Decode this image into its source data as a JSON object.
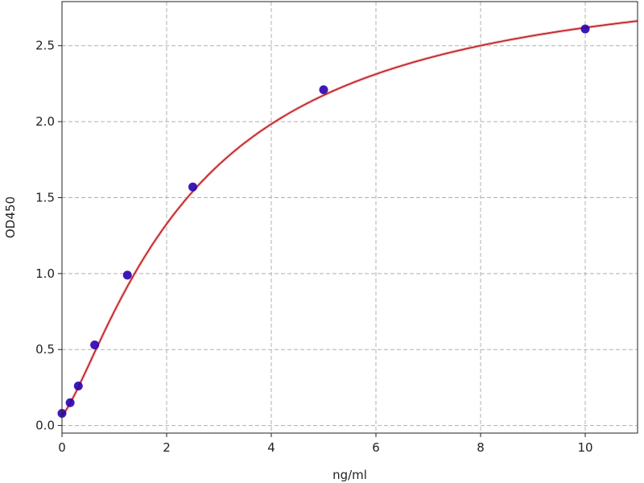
{
  "chart_data": {
    "type": "scatter",
    "title": "",
    "xlabel": "ng/ml",
    "ylabel": "OD450",
    "xlim": [
      0,
      11
    ],
    "ylim": [
      -0.05,
      2.79
    ],
    "xticks": [
      0,
      2,
      4,
      6,
      8,
      10
    ],
    "yticks": [
      0.0,
      0.5,
      1.0,
      1.5,
      2.0,
      2.5
    ],
    "xtick_labels": [
      "0",
      "2",
      "4",
      "6",
      "8",
      "10"
    ],
    "ytick_labels": [
      "0.0",
      "0.5",
      "1.0",
      "1.5",
      "2.0",
      "2.5"
    ],
    "grid": true,
    "points": {
      "x": [
        0,
        0.156,
        0.3125,
        0.625,
        1.25,
        2.5,
        5,
        10
      ],
      "y": [
        0.08,
        0.15,
        0.26,
        0.53,
        0.99,
        1.57,
        2.21,
        2.61
      ],
      "color": "#2a00b0"
    },
    "fit_curve": {
      "type": "4PL",
      "color": "#c0262a"
    }
  }
}
